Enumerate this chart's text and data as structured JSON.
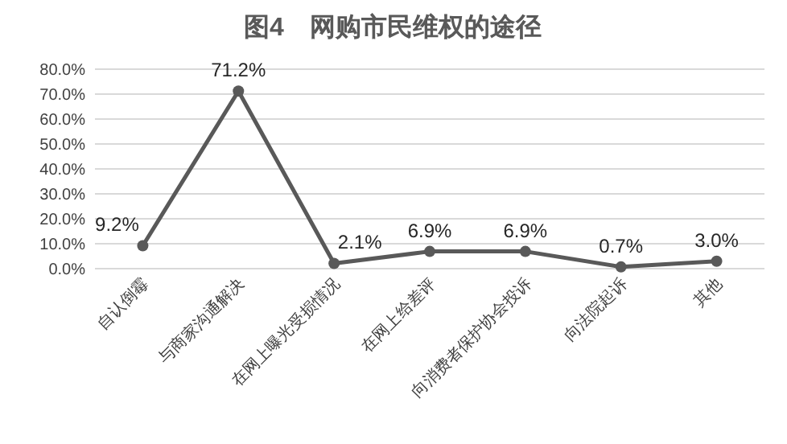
{
  "chart_data": {
    "type": "line",
    "title": "图4　网购市民维权的途径",
    "categories": [
      "自认倒霉",
      "与商家沟通解决",
      "在网上曝光受损情况",
      "在网上给差评",
      "向消费者保护协会投诉",
      "向法院起诉",
      "其他"
    ],
    "series": [
      {
        "color": "#595959",
        "values": [
          9.2,
          71.2,
          2.1,
          6.9,
          6.9,
          0.7,
          3.0
        ],
        "value_labels": [
          "9.2%",
          "71.2%",
          "2.1%",
          "6.9%",
          "6.9%",
          "0.7%",
          "3.0%"
        ]
      }
    ],
    "ylim": [
      0,
      80
    ],
    "yticks": [
      {
        "value": 0,
        "label": "0.0%"
      },
      {
        "value": 10,
        "label": "10.0%"
      },
      {
        "value": 20,
        "label": "20.0%"
      },
      {
        "value": 30,
        "label": "30.0%"
      },
      {
        "value": 40,
        "label": "40.0%"
      },
      {
        "value": 50,
        "label": "50.0%"
      },
      {
        "value": 60,
        "label": "60.0%"
      },
      {
        "value": 70,
        "label": "70.0%"
      },
      {
        "value": 80,
        "label": "80.0%"
      }
    ],
    "grid": "y",
    "marker": "circle",
    "line_style": "solid"
  }
}
